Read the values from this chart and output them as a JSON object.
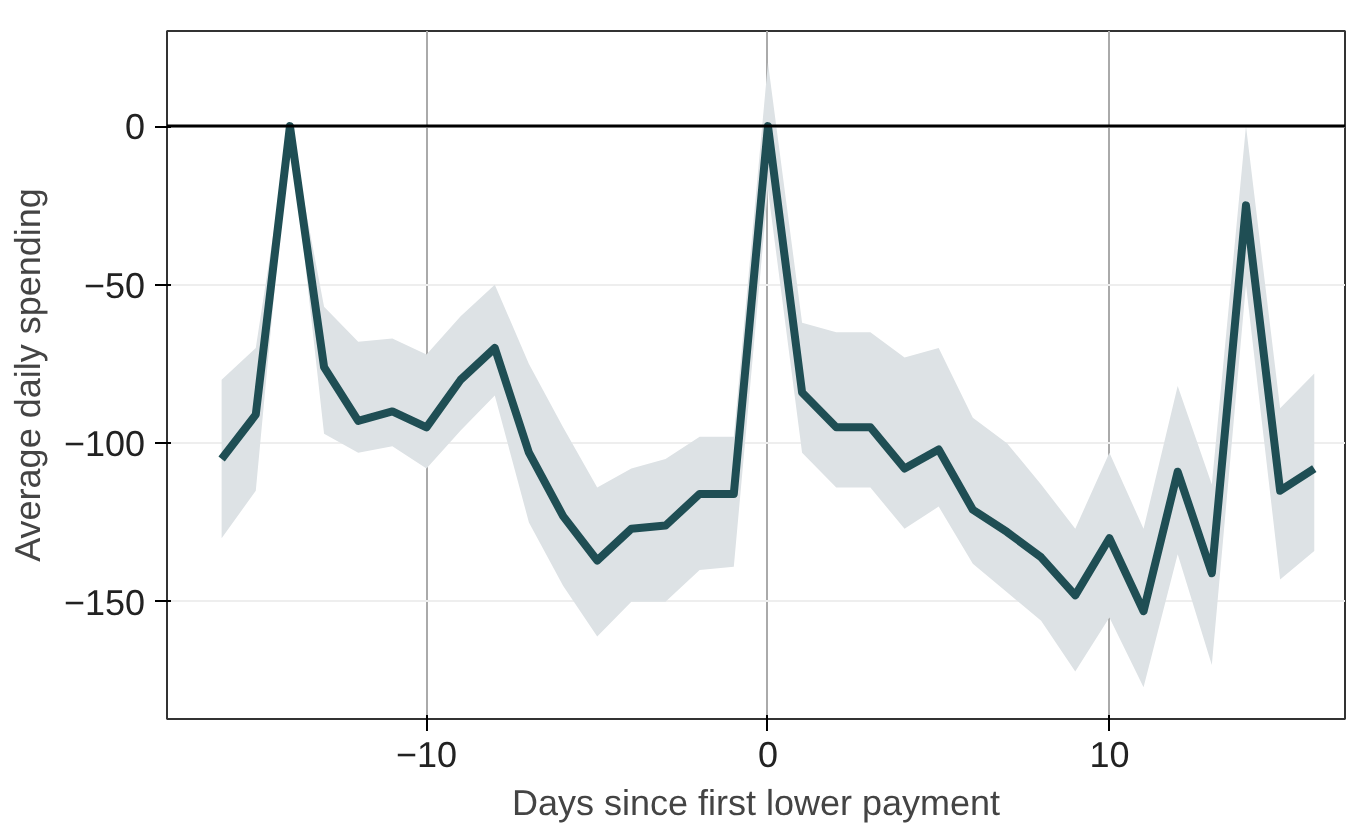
{
  "chart_data": {
    "type": "line",
    "xlabel": "Days since first lower payment",
    "ylabel": "Average daily spending",
    "x": [
      -16,
      -15,
      -14,
      -13,
      -12,
      -11,
      -10,
      -9,
      -8,
      -7,
      -6,
      -5,
      -4,
      -3,
      -2,
      -1,
      0,
      1,
      2,
      3,
      4,
      5,
      6,
      7,
      8,
      9,
      10,
      11,
      12,
      13,
      14,
      15,
      16
    ],
    "series": [
      {
        "color": "#1f4e54",
        "values": [
          -105,
          -91,
          0,
          -76,
          -93,
          -90,
          -95,
          -80,
          -70,
          -103,
          -123,
          -137,
          -127,
          -126,
          -116,
          -116,
          0,
          -84,
          -95,
          -95,
          -108,
          -102,
          -121,
          -128,
          -136,
          -148,
          -130,
          -153,
          -109,
          -141,
          -25,
          -115,
          -108
        ],
        "lower": [
          -130,
          -115,
          0,
          -97,
          -103,
          -101,
          -108,
          -96,
          -85,
          -125,
          -145,
          -161,
          -150,
          -150,
          -140,
          -139,
          -20,
          -103,
          -114,
          -114,
          -127,
          -120,
          -138,
          -147,
          -156,
          -172,
          -155,
          -177,
          -135,
          -170,
          -50,
          -143,
          -134
        ],
        "upper": [
          -80,
          -70,
          0,
          -57,
          -68,
          -67,
          -72,
          -60,
          -50,
          -75,
          -95,
          -114,
          -108,
          -105,
          -98,
          -98,
          20,
          -62,
          -65,
          -65,
          -73,
          -70,
          -92,
          -100,
          -113,
          -127,
          -103,
          -127,
          -82,
          -113,
          0,
          -89,
          -78
        ]
      }
    ],
    "xlim": [
      -17.6,
      16.9
    ],
    "ylim": [
      -187,
      30
    ],
    "xticks": [
      -10,
      0,
      10
    ],
    "yticks": [
      0,
      -50,
      -100,
      -150
    ],
    "ref_lines": [
      {
        "axis": "y",
        "value": 0,
        "color": "#000000"
      }
    ],
    "grid": true,
    "marker": "none",
    "line_style": "solid"
  }
}
